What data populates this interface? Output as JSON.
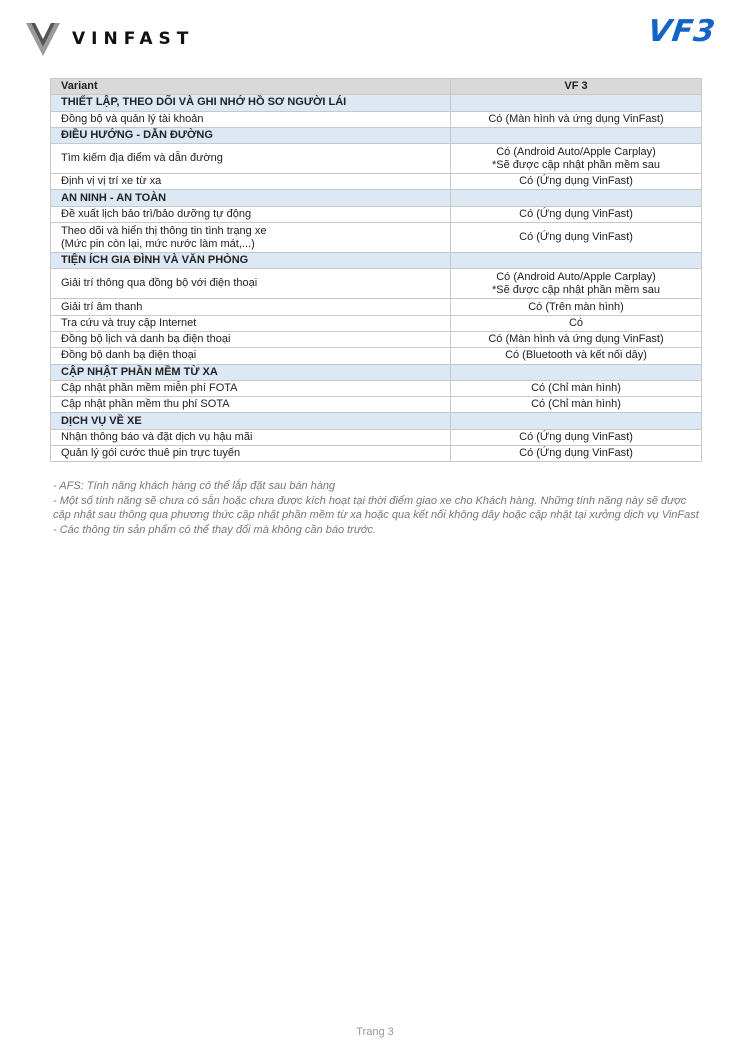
{
  "header": {
    "brand": "VINFAST",
    "model_logo": "VF3"
  },
  "table": {
    "columns": [
      "Variant",
      "VF 3"
    ],
    "rows": [
      {
        "type": "section",
        "label": "THIẾT LẬP, THEO DÕI VÀ GHI NHỚ HỒ SƠ NGƯỜI LÁI"
      },
      {
        "type": "row",
        "label": "Đồng bộ và quản lý tài khoản",
        "value": "Có (Màn hình và ứng dụng VinFast)"
      },
      {
        "type": "section",
        "label": "ĐIỀU HƯỚNG - DẪN ĐƯỜNG"
      },
      {
        "type": "row",
        "label": "Tìm kiếm địa điểm và dẫn đường",
        "value": "Có (Android Auto/Apple Carplay)\n*Sẽ được cập nhật phần mềm sau"
      },
      {
        "type": "row",
        "label": "Định vị vị trí xe từ xa",
        "value": "Có (Ứng dụng VinFast)"
      },
      {
        "type": "section",
        "label": "AN NINH - AN TOÀN"
      },
      {
        "type": "row",
        "label": "Đề xuất lịch bảo trì/bảo dưỡng tự động",
        "value": "Có (Ứng dụng VinFast)"
      },
      {
        "type": "row",
        "label": "Theo dõi và hiển thị thông tin tình trạng xe\n(Mức pin còn lại, mức nước làm mát,...)",
        "value": "Có (Ứng dụng VinFast)"
      },
      {
        "type": "section",
        "label": "TIỆN ÍCH GIA ĐÌNH VÀ VĂN PHÒNG"
      },
      {
        "type": "row",
        "label": "Giải trí thông qua đồng bộ với điện thoại",
        "value": "Có (Android Auto/Apple Carplay)\n*Sẽ được cập nhật phần mềm sau"
      },
      {
        "type": "row",
        "label": "Giải trí âm thanh",
        "value": "Có (Trên màn hình)"
      },
      {
        "type": "row",
        "label": "Tra cứu và truy cập Internet",
        "value": "Có"
      },
      {
        "type": "row",
        "label": "Đồng bộ lịch  và danh bạ điện thoại",
        "value": "Có (Màn hình và ứng dụng VinFast)"
      },
      {
        "type": "row",
        "label": "Đồng bộ danh bạ điện thoại",
        "value": "Có (Bluetooth và kết nối dây)"
      },
      {
        "type": "section",
        "label": "CẬP NHẬT PHẦN MỀM TỪ XA"
      },
      {
        "type": "row",
        "label": "Cập nhật phần mềm miễn phí FOTA",
        "value": "Có (Chỉ màn hình)"
      },
      {
        "type": "row",
        "label": "Cập nhật phần mềm thu phí SOTA",
        "value": "Có (Chỉ màn hình)"
      },
      {
        "type": "section",
        "label": "DỊCH VỤ VỀ XE"
      },
      {
        "type": "row",
        "label": "Nhận thông báo và đặt dịch vụ hậu mãi",
        "value": "Có (Ứng dụng VinFast)"
      },
      {
        "type": "row",
        "label": "Quản lý gói cước thuê pin trực tuyến",
        "value": "Có (Ứng dụng VinFast)"
      }
    ]
  },
  "notes": [
    "- AFS: Tính năng khách hàng có thể lắp đặt sau bán hàng",
    "- Một số tính năng sẽ chưa có sẵn hoặc chưa được kích hoạt tại thời điểm giao xe cho Khách hàng. Những tính năng này sẽ được cập nhật sau thông qua phương thức cập nhật phần mềm từ xa hoặc qua kết nối không dây hoặc cập nhật tại xưởng dịch vụ VinFast",
    "- Các thông tin sản phẩm có thể thay đổi mà không cần báo trước."
  ],
  "footer": {
    "page": "Trang 3"
  },
  "colors": {
    "header_bg": "#d9d9d9",
    "section_bg": "#dce9f5",
    "brand_blue": "#1464c8"
  }
}
